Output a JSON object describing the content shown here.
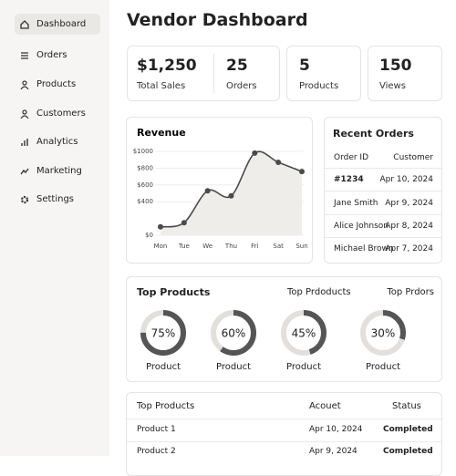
{
  "sidebar": {
    "items": [
      "Dashboard",
      "Orders",
      "Products",
      "Customers",
      "Analytics",
      "Marketing",
      "Settings"
    ]
  },
  "header": {
    "title": "Vendor Dashboard"
  },
  "stats": [
    {
      "value": "$1,250",
      "label": "Total Sales"
    },
    {
      "value": "25",
      "label": "Orders"
    },
    {
      "value": "5",
      "label": "Products"
    },
    {
      "value": "150",
      "label": "Views"
    }
  ],
  "chart_data": {
    "type": "line",
    "title": "Revenue",
    "categories": [
      "Mon",
      "Tue",
      "We",
      "Thu",
      "Fri",
      "Sat",
      "Sun"
    ],
    "values": [
      100,
      150,
      530,
      470,
      980,
      870,
      760
    ],
    "color": "#4a4a4a",
    "ylim": [
      0,
      1000
    ],
    "yticks": [
      {
        "value": 0,
        "label": "$0"
      },
      {
        "value": 400,
        "label": "$400"
      },
      {
        "value": 600,
        "label": "$600"
      },
      {
        "value": 800,
        "label": "$800"
      },
      {
        "value": 1000,
        "label": "$1000"
      }
    ],
    "grid": true
  },
  "recent_orders": {
    "title": "Recent Orders",
    "columns": [
      "Order ID",
      "Customer"
    ],
    "rows": [
      [
        "#1234",
        "Apr 10, 2024"
      ],
      [
        "Jane Smith",
        "Apr 9, 2024"
      ],
      [
        "Alice Johnson",
        "Apr 8, 2024"
      ],
      [
        "Michael Brown",
        "Apr 7, 2024"
      ]
    ]
  },
  "top_products": {
    "title": "Top Products",
    "headers": [
      "Top Prdoducts",
      "Top Prdors"
    ],
    "items": [
      {
        "value": 75,
        "value_label": "75%",
        "label": "Product"
      },
      {
        "value": 60,
        "value_label": "60%",
        "label": "Product"
      },
      {
        "value": 45,
        "value_label": "45%",
        "label": "Product"
      },
      {
        "value": 30,
        "value_label": "30%",
        "label": "Product"
      }
    ]
  },
  "table": {
    "columns": [
      "Top Products",
      "Acouet",
      "Status"
    ],
    "rows": [
      [
        "Product 1",
        "Apr 10, 2024",
        "Completed"
      ],
      [
        "Product 2",
        "Apr 9, 2024",
        "Completed"
      ]
    ]
  }
}
